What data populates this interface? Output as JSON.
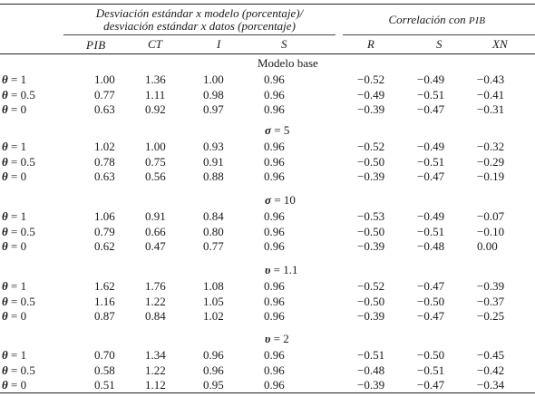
{
  "header": {
    "group1_line1": "Desviación estándar x modelo (porcentaje)/",
    "group1_line2": "desviación estándar x datos (porcentaje)",
    "group2_label": "Correlación con",
    "group2_label_sc": "PIB"
  },
  "columns": {
    "pib": "PIB",
    "ct": "CT",
    "i": "I",
    "s1": "S",
    "r": "R",
    "s2": "S",
    "xn": "XN"
  },
  "theta_symbol": "θ",
  "sections": [
    {
      "title": "Modelo base",
      "rows": [
        {
          "label_value": "= 1",
          "values": [
            "1.00",
            "1.36",
            "1.00",
            "0.96",
            "−0.52",
            "−0.49",
            "−0.43"
          ]
        },
        {
          "label_value": "= 0.5",
          "values": [
            "0.77",
            "1.11",
            "0.98",
            "0.96",
            "−0.49",
            "−0.51",
            "−0.41"
          ]
        },
        {
          "label_value": "= 0",
          "values": [
            "0.63",
            "0.92",
            "0.97",
            "0.96",
            "−0.39",
            "−0.47",
            "−0.31"
          ]
        }
      ]
    },
    {
      "title_symbol": "σ",
      "title": "= 5",
      "rows": [
        {
          "label_value": "= 1",
          "values": [
            "1.02",
            "1.00",
            "0.93",
            "0.96",
            "−0.52",
            "−0.49",
            "−0.32"
          ]
        },
        {
          "label_value": "= 0.5",
          "values": [
            "0.78",
            "0.75",
            "0.91",
            "0.96",
            "−0.50",
            "−0.51",
            "−0.29"
          ]
        },
        {
          "label_value": "= 0",
          "values": [
            "0.63",
            "0.56",
            "0.88",
            "0.96",
            "−0.39",
            "−0.47",
            "−0.19"
          ]
        }
      ]
    },
    {
      "title_symbol": "σ",
      "title": "= 10",
      "rows": [
        {
          "label_value": "= 1",
          "values": [
            "1.06",
            "0.91",
            "0.84",
            "0.96",
            "−0.53",
            "−0.49",
            "−0.07"
          ]
        },
        {
          "label_value": "= 0.5",
          "values": [
            "0.79",
            "0.66",
            "0.80",
            "0.96",
            "−0.50",
            "−0.51",
            "−0.10"
          ]
        },
        {
          "label_value": "= 0",
          "values": [
            "0.62",
            "0.47",
            "0.77",
            "0.96",
            "−0.39",
            "−0.48",
            "0.00"
          ]
        }
      ]
    },
    {
      "title_symbol": "υ",
      "title": "= 1.1",
      "rows": [
        {
          "label_value": "= 1",
          "values": [
            "1.62",
            "1.76",
            "1.08",
            "0.96",
            "−0.52",
            "−0.47",
            "−0.39"
          ]
        },
        {
          "label_value": "= 0.5",
          "values": [
            "1.16",
            "1.22",
            "1.05",
            "0.96",
            "−0.50",
            "−0.50",
            "−0.37"
          ]
        },
        {
          "label_value": "= 0",
          "values": [
            "0.87",
            "0.84",
            "1.02",
            "0.96",
            "−0.39",
            "−0.47",
            "−0.25"
          ]
        }
      ]
    },
    {
      "title_symbol": "υ",
      "title": "= 2",
      "rows": [
        {
          "label_value": "= 1",
          "values": [
            "0.70",
            "1.34",
            "0.96",
            "0.96",
            "−0.51",
            "−0.50",
            "−0.45"
          ]
        },
        {
          "label_value": "= 0.5",
          "values": [
            "0.58",
            "1.22",
            "0.96",
            "0.96",
            "−0.48",
            "−0.51",
            "−0.42"
          ]
        },
        {
          "label_value": "= 0",
          "values": [
            "0.51",
            "1.12",
            "0.95",
            "0.96",
            "−0.39",
            "−0.47",
            "−0.34"
          ]
        }
      ]
    }
  ]
}
